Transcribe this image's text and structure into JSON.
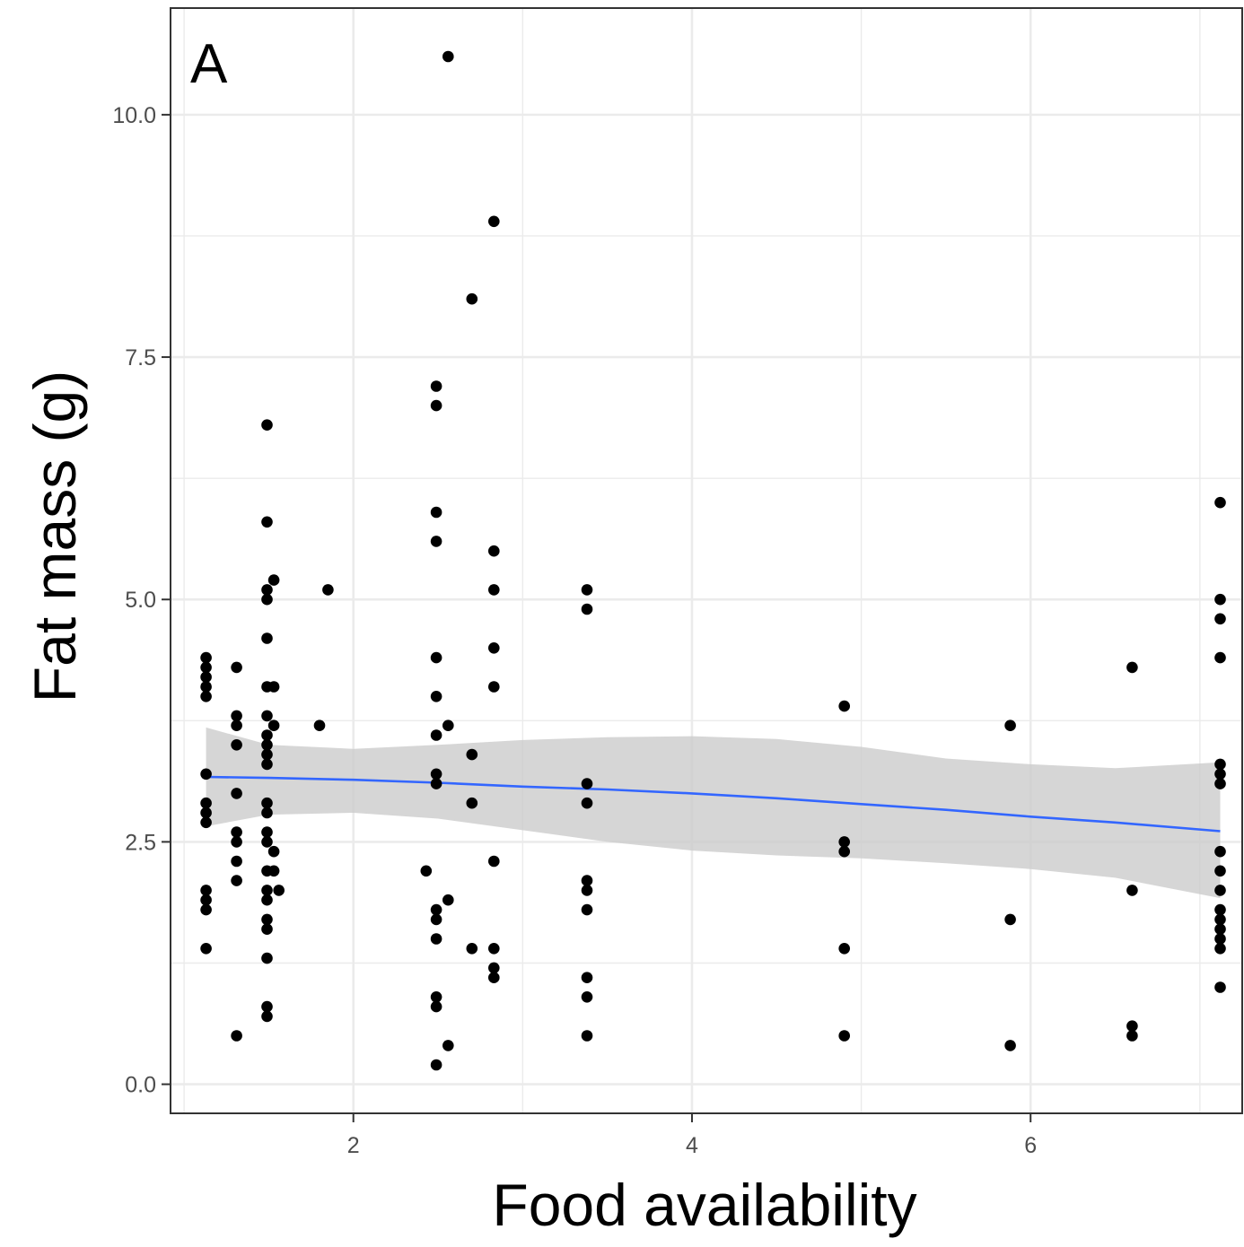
{
  "chart_data": {
    "type": "scatter",
    "panel_label": "A",
    "xlabel": "Food availability",
    "ylabel": "Fat mass (g)",
    "xlim": [
      0.92,
      7.25
    ],
    "ylim": [
      -0.3,
      11.1
    ],
    "x_ticks": [
      2,
      4,
      6
    ],
    "x_tick_labels": [
      "2",
      "4",
      "6"
    ],
    "y_ticks": [
      0.0,
      2.5,
      5.0,
      7.5,
      10.0
    ],
    "y_tick_labels": [
      "0.0",
      "2.5",
      "5.0",
      "7.5",
      "10.0"
    ],
    "grid": true,
    "legend": "none",
    "colors": {
      "points": "#000000",
      "fit_line": "#3366FF",
      "confidence_band": "#cccccc",
      "grid": "#ebebeb",
      "panel_border": "#333333"
    },
    "points": [
      [
        1.13,
        4.4
      ],
      [
        1.13,
        4.3
      ],
      [
        1.13,
        4.2
      ],
      [
        1.13,
        4.1
      ],
      [
        1.13,
        4.0
      ],
      [
        1.13,
        3.2
      ],
      [
        1.13,
        2.9
      ],
      [
        1.13,
        2.8
      ],
      [
        1.13,
        2.7
      ],
      [
        1.13,
        2.0
      ],
      [
        1.13,
        1.9
      ],
      [
        1.13,
        1.8
      ],
      [
        1.13,
        1.4
      ],
      [
        1.31,
        4.3
      ],
      [
        1.31,
        3.8
      ],
      [
        1.31,
        3.7
      ],
      [
        1.31,
        3.5
      ],
      [
        1.31,
        3.0
      ],
      [
        1.31,
        2.6
      ],
      [
        1.31,
        2.5
      ],
      [
        1.31,
        2.3
      ],
      [
        1.31,
        2.1
      ],
      [
        1.31,
        0.5
      ],
      [
        1.49,
        6.8
      ],
      [
        1.49,
        5.8
      ],
      [
        1.49,
        5.1
      ],
      [
        1.49,
        5.0
      ],
      [
        1.49,
        4.6
      ],
      [
        1.49,
        4.1
      ],
      [
        1.49,
        3.8
      ],
      [
        1.49,
        3.6
      ],
      [
        1.49,
        3.5
      ],
      [
        1.49,
        3.4
      ],
      [
        1.49,
        3.3
      ],
      [
        1.49,
        2.9
      ],
      [
        1.49,
        2.8
      ],
      [
        1.49,
        2.6
      ],
      [
        1.49,
        2.5
      ],
      [
        1.49,
        2.2
      ],
      [
        1.49,
        2.0
      ],
      [
        1.49,
        1.9
      ],
      [
        1.49,
        1.7
      ],
      [
        1.49,
        1.6
      ],
      [
        1.49,
        1.3
      ],
      [
        1.49,
        0.8
      ],
      [
        1.49,
        0.7
      ],
      [
        1.53,
        5.2
      ],
      [
        1.53,
        4.1
      ],
      [
        1.53,
        3.7
      ],
      [
        1.53,
        2.4
      ],
      [
        1.53,
        2.2
      ],
      [
        1.56,
        2.0
      ],
      [
        1.8,
        3.7
      ],
      [
        1.85,
        5.1
      ],
      [
        2.43,
        2.2
      ],
      [
        2.49,
        7.2
      ],
      [
        2.49,
        7.0
      ],
      [
        2.49,
        5.9
      ],
      [
        2.49,
        5.6
      ],
      [
        2.49,
        4.4
      ],
      [
        2.49,
        4.0
      ],
      [
        2.49,
        3.6
      ],
      [
        2.49,
        3.2
      ],
      [
        2.49,
        3.1
      ],
      [
        2.49,
        1.8
      ],
      [
        2.49,
        1.7
      ],
      [
        2.49,
        1.5
      ],
      [
        2.49,
        0.9
      ],
      [
        2.49,
        0.8
      ],
      [
        2.49,
        0.2
      ],
      [
        2.56,
        10.6
      ],
      [
        2.56,
        3.7
      ],
      [
        2.56,
        1.9
      ],
      [
        2.56,
        0.4
      ],
      [
        2.7,
        8.1
      ],
      [
        2.7,
        3.4
      ],
      [
        2.7,
        2.9
      ],
      [
        2.7,
        1.4
      ],
      [
        2.83,
        8.9
      ],
      [
        2.83,
        5.5
      ],
      [
        2.83,
        5.1
      ],
      [
        2.83,
        4.5
      ],
      [
        2.83,
        4.1
      ],
      [
        2.83,
        2.3
      ],
      [
        2.83,
        1.4
      ],
      [
        2.83,
        1.2
      ],
      [
        2.83,
        1.1
      ],
      [
        3.38,
        5.1
      ],
      [
        3.38,
        4.9
      ],
      [
        3.38,
        3.1
      ],
      [
        3.38,
        2.9
      ],
      [
        3.38,
        2.1
      ],
      [
        3.38,
        2.0
      ],
      [
        3.38,
        1.8
      ],
      [
        3.38,
        1.1
      ],
      [
        3.38,
        0.9
      ],
      [
        3.38,
        0.5
      ],
      [
        4.9,
        3.9
      ],
      [
        4.9,
        2.5
      ],
      [
        4.9,
        2.4
      ],
      [
        4.9,
        1.4
      ],
      [
        4.9,
        0.5
      ],
      [
        5.88,
        3.7
      ],
      [
        5.88,
        1.7
      ],
      [
        5.88,
        0.4
      ],
      [
        6.6,
        4.3
      ],
      [
        6.6,
        2.0
      ],
      [
        6.6,
        0.6
      ],
      [
        6.6,
        0.5
      ],
      [
        7.12,
        6.0
      ],
      [
        7.12,
        5.0
      ],
      [
        7.12,
        4.8
      ],
      [
        7.12,
        4.4
      ],
      [
        7.12,
        3.3
      ],
      [
        7.12,
        3.2
      ],
      [
        7.12,
        3.1
      ],
      [
        7.12,
        2.4
      ],
      [
        7.12,
        2.2
      ],
      [
        7.12,
        2.0
      ],
      [
        7.12,
        1.8
      ],
      [
        7.12,
        1.7
      ],
      [
        7.12,
        1.6
      ],
      [
        7.12,
        1.5
      ],
      [
        7.12,
        1.4
      ],
      [
        7.12,
        1.0
      ]
    ],
    "fit": {
      "method": "smooth",
      "x": [
        1.13,
        1.5,
        2.0,
        2.5,
        3.0,
        3.5,
        4.0,
        4.5,
        5.0,
        5.5,
        6.0,
        6.5,
        7.12
      ],
      "y": [
        3.17,
        3.16,
        3.14,
        3.11,
        3.07,
        3.04,
        3.0,
        2.95,
        2.89,
        2.83,
        2.76,
        2.7,
        2.61
      ],
      "lower": [
        2.66,
        2.78,
        2.8,
        2.74,
        2.62,
        2.5,
        2.41,
        2.36,
        2.33,
        2.28,
        2.22,
        2.13,
        1.92
      ],
      "upper": [
        3.68,
        3.5,
        3.46,
        3.5,
        3.55,
        3.58,
        3.59,
        3.56,
        3.48,
        3.36,
        3.3,
        3.26,
        3.32
      ]
    }
  }
}
